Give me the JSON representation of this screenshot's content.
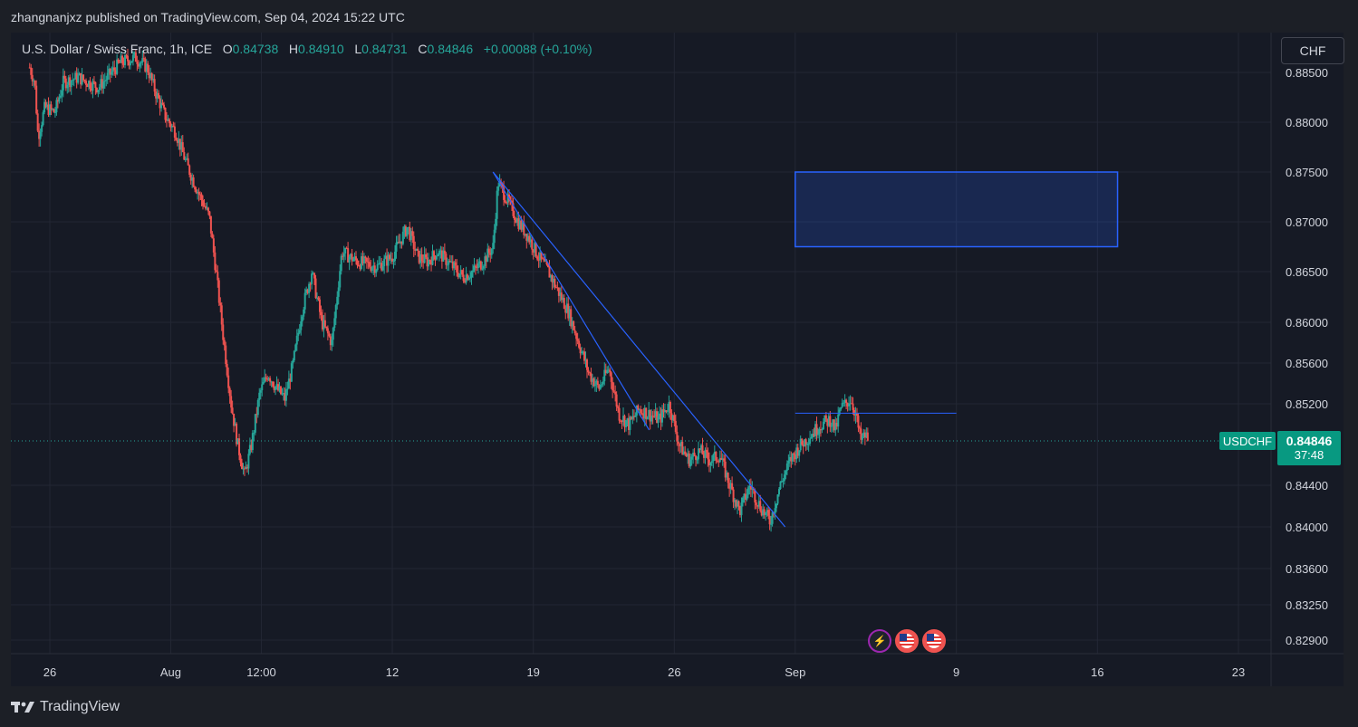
{
  "header": {
    "published": "zhangnanjxz published on TradingView.com, Sep 04, 2024 15:22 UTC"
  },
  "legend": {
    "symbol": "U.S. Dollar / Swiss Franc, 1h, ICE",
    "o_label": "O",
    "o": "0.84738",
    "h_label": "H",
    "h": "0.84910",
    "l_label": "L",
    "l": "0.84731",
    "c_label": "C",
    "c": "0.84846",
    "change": "+0.00088 (+0.10%)"
  },
  "currency_button": "CHF",
  "last_price": {
    "symbol": "USDCHF",
    "price": "0.84846",
    "countdown": "37:48"
  },
  "footer": {
    "brand": "TradingView"
  },
  "events": [
    {
      "icon": "lightning-icon"
    },
    {
      "icon": "us-flag-icon"
    },
    {
      "icon": "us-flag-icon"
    }
  ],
  "colors": {
    "up": "#26a69a",
    "down": "#ef5350",
    "drawing": "#2962ff",
    "bg": "#161a25",
    "text": "#d1d4dc"
  },
  "chart_data": {
    "type": "candlestick",
    "series_name": "USDCHF",
    "y_ticks": [
      "0.88500",
      "0.88000",
      "0.87500",
      "0.87000",
      "0.86500",
      "0.86000",
      "0.85600",
      "0.85200",
      "0.84400",
      "0.84000",
      "0.83600",
      "0.83250",
      "0.82900"
    ],
    "x_ticks": [
      {
        "label": "26",
        "x": "2024-07-26"
      },
      {
        "label": "Aug",
        "x": "2024-08-01"
      },
      {
        "label": "12:00",
        "x": "2024-08-05T12:00"
      },
      {
        "label": "12",
        "x": "2024-08-12"
      },
      {
        "label": "19",
        "x": "2024-08-19"
      },
      {
        "label": "26",
        "x": "2024-08-26"
      },
      {
        "label": "Sep",
        "x": "2024-09-01"
      },
      {
        "label": "9",
        "x": "2024-09-09"
      },
      {
        "label": "16",
        "x": "2024-09-16"
      },
      {
        "label": "23",
        "x": "2024-09-23"
      }
    ],
    "price_path": [
      [
        "2024-07-25T00:00",
        0.8855
      ],
      [
        "2024-07-25T06:00",
        0.884
      ],
      [
        "2024-07-25T10:00",
        0.8785
      ],
      [
        "2024-07-25T18:00",
        0.8815
      ],
      [
        "2024-07-26T06:00",
        0.881
      ],
      [
        "2024-07-26T16:00",
        0.884
      ],
      [
        "2024-07-27T10:00",
        0.8845
      ],
      [
        "2024-07-28T10:00",
        0.8835
      ],
      [
        "2024-07-29T12:00",
        0.886
      ],
      [
        "2024-07-30T06:00",
        0.8865
      ],
      [
        "2024-07-30T20:00",
        0.8855
      ],
      [
        "2024-07-31T06:00",
        0.883
      ],
      [
        "2024-07-31T18:00",
        0.8805
      ],
      [
        "2024-08-01T06:00",
        0.879
      ],
      [
        "2024-08-01T18:00",
        0.876
      ],
      [
        "2024-08-02T06:00",
        0.8735
      ],
      [
        "2024-08-02T14:00",
        0.872
      ],
      [
        "2024-08-02T22:00",
        0.8705
      ],
      [
        "2024-08-03T06:00",
        0.865
      ],
      [
        "2024-08-03T14:00",
        0.859
      ],
      [
        "2024-08-04T00:00",
        0.852
      ],
      [
        "2024-08-04T08:00",
        0.848
      ],
      [
        "2024-08-04T16:00",
        0.845
      ],
      [
        "2024-08-05T00:00",
        0.848
      ],
      [
        "2024-08-05T10:00",
        0.853
      ],
      [
        "2024-08-05T20:00",
        0.855
      ],
      [
        "2024-08-06T06:00",
        0.8535
      ],
      [
        "2024-08-06T16:00",
        0.8525
      ],
      [
        "2024-08-07T02:00",
        0.856
      ],
      [
        "2024-08-07T12:00",
        0.861
      ],
      [
        "2024-08-08T00:00",
        0.865
      ],
      [
        "2024-08-08T12:00",
        0.86
      ],
      [
        "2024-08-09T00:00",
        0.858
      ],
      [
        "2024-08-09T12:00",
        0.867
      ],
      [
        "2024-08-10T06:00",
        0.866
      ],
      [
        "2024-08-11T06:00",
        0.8655
      ],
      [
        "2024-08-12T00:00",
        0.8665
      ],
      [
        "2024-08-12T18:00",
        0.8695
      ],
      [
        "2024-08-13T06:00",
        0.8665
      ],
      [
        "2024-08-13T18:00",
        0.866
      ],
      [
        "2024-08-14T06:00",
        0.867
      ],
      [
        "2024-08-15T00:00",
        0.8655
      ],
      [
        "2024-08-15T12:00",
        0.8645
      ],
      [
        "2024-08-16T00:00",
        0.865
      ],
      [
        "2024-08-16T12:00",
        0.866
      ],
      [
        "2024-08-17T00:00",
        0.8675
      ],
      [
        "2024-08-17T06:00",
        0.874
      ],
      [
        "2024-08-17T18:00",
        0.872
      ],
      [
        "2024-08-18T06:00",
        0.87
      ],
      [
        "2024-08-18T18:00",
        0.8685
      ],
      [
        "2024-08-19T06:00",
        0.8665
      ],
      [
        "2024-08-19T18:00",
        0.865
      ],
      [
        "2024-08-20T06:00",
        0.863
      ],
      [
        "2024-08-20T18:00",
        0.861
      ],
      [
        "2024-08-21T06:00",
        0.858
      ],
      [
        "2024-08-21T18:00",
        0.855
      ],
      [
        "2024-08-22T06:00",
        0.8535
      ],
      [
        "2024-08-22T18:00",
        0.8555
      ],
      [
        "2024-08-23T06:00",
        0.851
      ],
      [
        "2024-08-23T18:00",
        0.85
      ],
      [
        "2024-08-24T06:00",
        0.8515
      ],
      [
        "2024-08-25T06:00",
        0.8505
      ],
      [
        "2024-08-25T18:00",
        0.852
      ],
      [
        "2024-08-26T06:00",
        0.848
      ],
      [
        "2024-08-26T18:00",
        0.8465
      ],
      [
        "2024-08-27T06:00",
        0.8475
      ],
      [
        "2024-08-27T18:00",
        0.8465
      ],
      [
        "2024-08-28T06:00",
        0.847
      ],
      [
        "2024-08-28T18:00",
        0.844
      ],
      [
        "2024-08-29T06:00",
        0.8415
      ],
      [
        "2024-08-29T18:00",
        0.844
      ],
      [
        "2024-08-30T06:00",
        0.842
      ],
      [
        "2024-08-30T18:00",
        0.8405
      ],
      [
        "2024-08-31T06:00",
        0.844
      ],
      [
        "2024-08-31T18:00",
        0.8465
      ],
      [
        "2024-09-01T06:00",
        0.848
      ],
      [
        "2024-09-01T18:00",
        0.849
      ],
      [
        "2024-09-02T06:00",
        0.85
      ],
      [
        "2024-09-02T18:00",
        0.8505
      ],
      [
        "2024-09-03T00:00",
        0.8495
      ],
      [
        "2024-09-03T06:00",
        0.8515
      ],
      [
        "2024-09-03T12:00",
        0.852
      ],
      [
        "2024-09-03T18:00",
        0.8525
      ],
      [
        "2024-09-04T00:00",
        0.851
      ],
      [
        "2024-09-04T06:00",
        0.8485
      ],
      [
        "2024-09-04T12:00",
        0.849
      ],
      [
        "2024-09-04T15:00",
        0.84846
      ]
    ],
    "drawings": {
      "trendline_1": [
        [
          "2024-08-17T00:00",
          0.875
        ],
        [
          "2024-08-24T18:00",
          0.8495
        ]
      ],
      "trendline_2": [
        [
          "2024-08-17T00:00",
          0.875
        ],
        [
          "2024-08-31T12:00",
          0.84
        ]
      ],
      "resistance_line": [
        [
          "2024-09-01T00:00",
          0.8511
        ],
        [
          "2024-09-09T00:00",
          0.8511
        ]
      ],
      "zone": {
        "x_from": "2024-09-01T00:00",
        "x_to": "2024-09-17T00:00",
        "y_from": 0.8675,
        "y_to": 0.875
      }
    }
  }
}
